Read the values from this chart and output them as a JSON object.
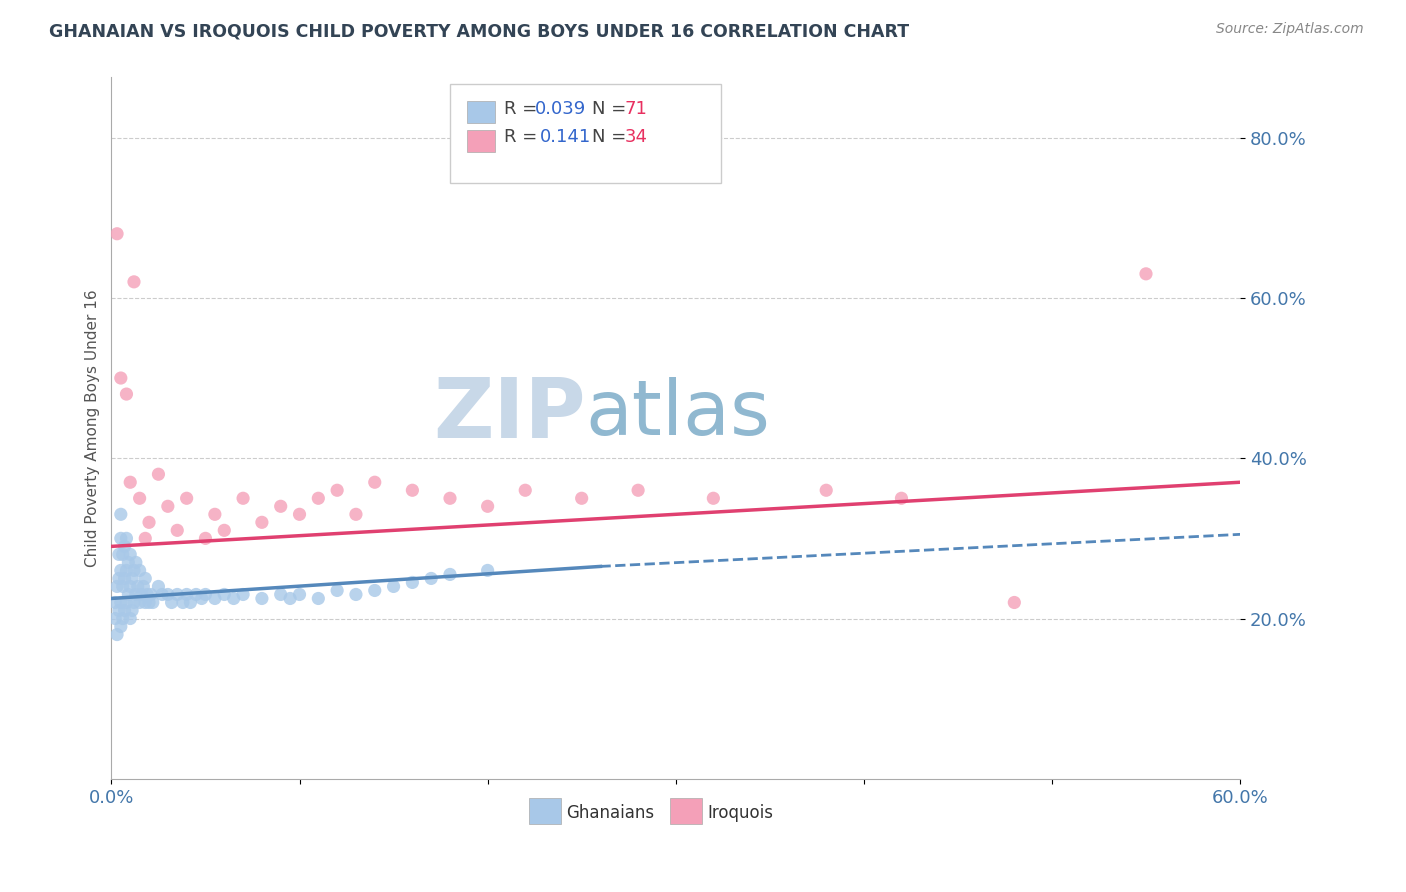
{
  "title": "GHANAIAN VS IROQUOIS CHILD POVERTY AMONG BOYS UNDER 16 CORRELATION CHART",
  "source": "Source: ZipAtlas.com",
  "ylabel": "Child Poverty Among Boys Under 16",
  "xlim": [
    0.0,
    0.6
  ],
  "ylim": [
    0.0,
    0.875
  ],
  "xticks": [
    0.0,
    0.1,
    0.2,
    0.3,
    0.4,
    0.5,
    0.6
  ],
  "xticklabels": [
    "0.0%",
    "",
    "",
    "",
    "",
    "",
    "60.0%"
  ],
  "ytick_positions": [
    0.2,
    0.4,
    0.6,
    0.8
  ],
  "ytick_labels": [
    "20.0%",
    "40.0%",
    "60.0%",
    "80.0%"
  ],
  "ghanaian_color": "#a8c8e8",
  "iroquois_color": "#f4a0b8",
  "ghanaian_line_color": "#5588bb",
  "iroquois_line_color": "#e04070",
  "watermark_zip": "ZIP",
  "watermark_atlas": "atlas",
  "watermark_color_zip": "#c8d8e8",
  "watermark_color_atlas": "#90b8d0",
  "ghanaians_scatter_x": [
    0.002,
    0.002,
    0.003,
    0.003,
    0.004,
    0.004,
    0.004,
    0.005,
    0.005,
    0.005,
    0.005,
    0.005,
    0.006,
    0.006,
    0.006,
    0.007,
    0.007,
    0.007,
    0.008,
    0.008,
    0.008,
    0.009,
    0.009,
    0.01,
    0.01,
    0.01,
    0.011,
    0.011,
    0.012,
    0.012,
    0.013,
    0.013,
    0.014,
    0.015,
    0.015,
    0.016,
    0.017,
    0.018,
    0.018,
    0.019,
    0.02,
    0.021,
    0.022,
    0.025,
    0.027,
    0.03,
    0.032,
    0.035,
    0.038,
    0.04,
    0.042,
    0.045,
    0.048,
    0.05,
    0.055,
    0.06,
    0.065,
    0.07,
    0.08,
    0.09,
    0.095,
    0.1,
    0.11,
    0.12,
    0.13,
    0.14,
    0.15,
    0.16,
    0.17,
    0.18,
    0.2
  ],
  "ghanaians_scatter_y": [
    0.2,
    0.22,
    0.18,
    0.24,
    0.21,
    0.25,
    0.28,
    0.19,
    0.22,
    0.26,
    0.3,
    0.33,
    0.2,
    0.24,
    0.28,
    0.21,
    0.25,
    0.29,
    0.22,
    0.26,
    0.3,
    0.23,
    0.27,
    0.2,
    0.24,
    0.28,
    0.21,
    0.25,
    0.22,
    0.26,
    0.23,
    0.27,
    0.24,
    0.22,
    0.26,
    0.23,
    0.24,
    0.22,
    0.25,
    0.23,
    0.22,
    0.23,
    0.22,
    0.24,
    0.23,
    0.23,
    0.22,
    0.23,
    0.22,
    0.23,
    0.22,
    0.23,
    0.225,
    0.23,
    0.225,
    0.23,
    0.225,
    0.23,
    0.225,
    0.23,
    0.225,
    0.23,
    0.225,
    0.235,
    0.23,
    0.235,
    0.24,
    0.245,
    0.25,
    0.255,
    0.26
  ],
  "iroquois_scatter_x": [
    0.003,
    0.005,
    0.008,
    0.01,
    0.012,
    0.015,
    0.018,
    0.02,
    0.025,
    0.03,
    0.035,
    0.04,
    0.05,
    0.055,
    0.06,
    0.07,
    0.08,
    0.09,
    0.1,
    0.11,
    0.12,
    0.13,
    0.14,
    0.16,
    0.18,
    0.2,
    0.22,
    0.25,
    0.28,
    0.32,
    0.38,
    0.42,
    0.48,
    0.55
  ],
  "iroquois_scatter_y": [
    0.68,
    0.5,
    0.48,
    0.37,
    0.62,
    0.35,
    0.3,
    0.32,
    0.38,
    0.34,
    0.31,
    0.35,
    0.3,
    0.33,
    0.31,
    0.35,
    0.32,
    0.34,
    0.33,
    0.35,
    0.36,
    0.33,
    0.37,
    0.36,
    0.35,
    0.34,
    0.36,
    0.35,
    0.36,
    0.35,
    0.36,
    0.35,
    0.22,
    0.63
  ],
  "ghanaian_trendline_x": [
    0.0,
    0.26
  ],
  "ghanaian_trendline_y": [
    0.225,
    0.265
  ],
  "iroquois_trendline_x": [
    0.0,
    0.6
  ],
  "iroquois_trendline_y": [
    0.29,
    0.37
  ]
}
